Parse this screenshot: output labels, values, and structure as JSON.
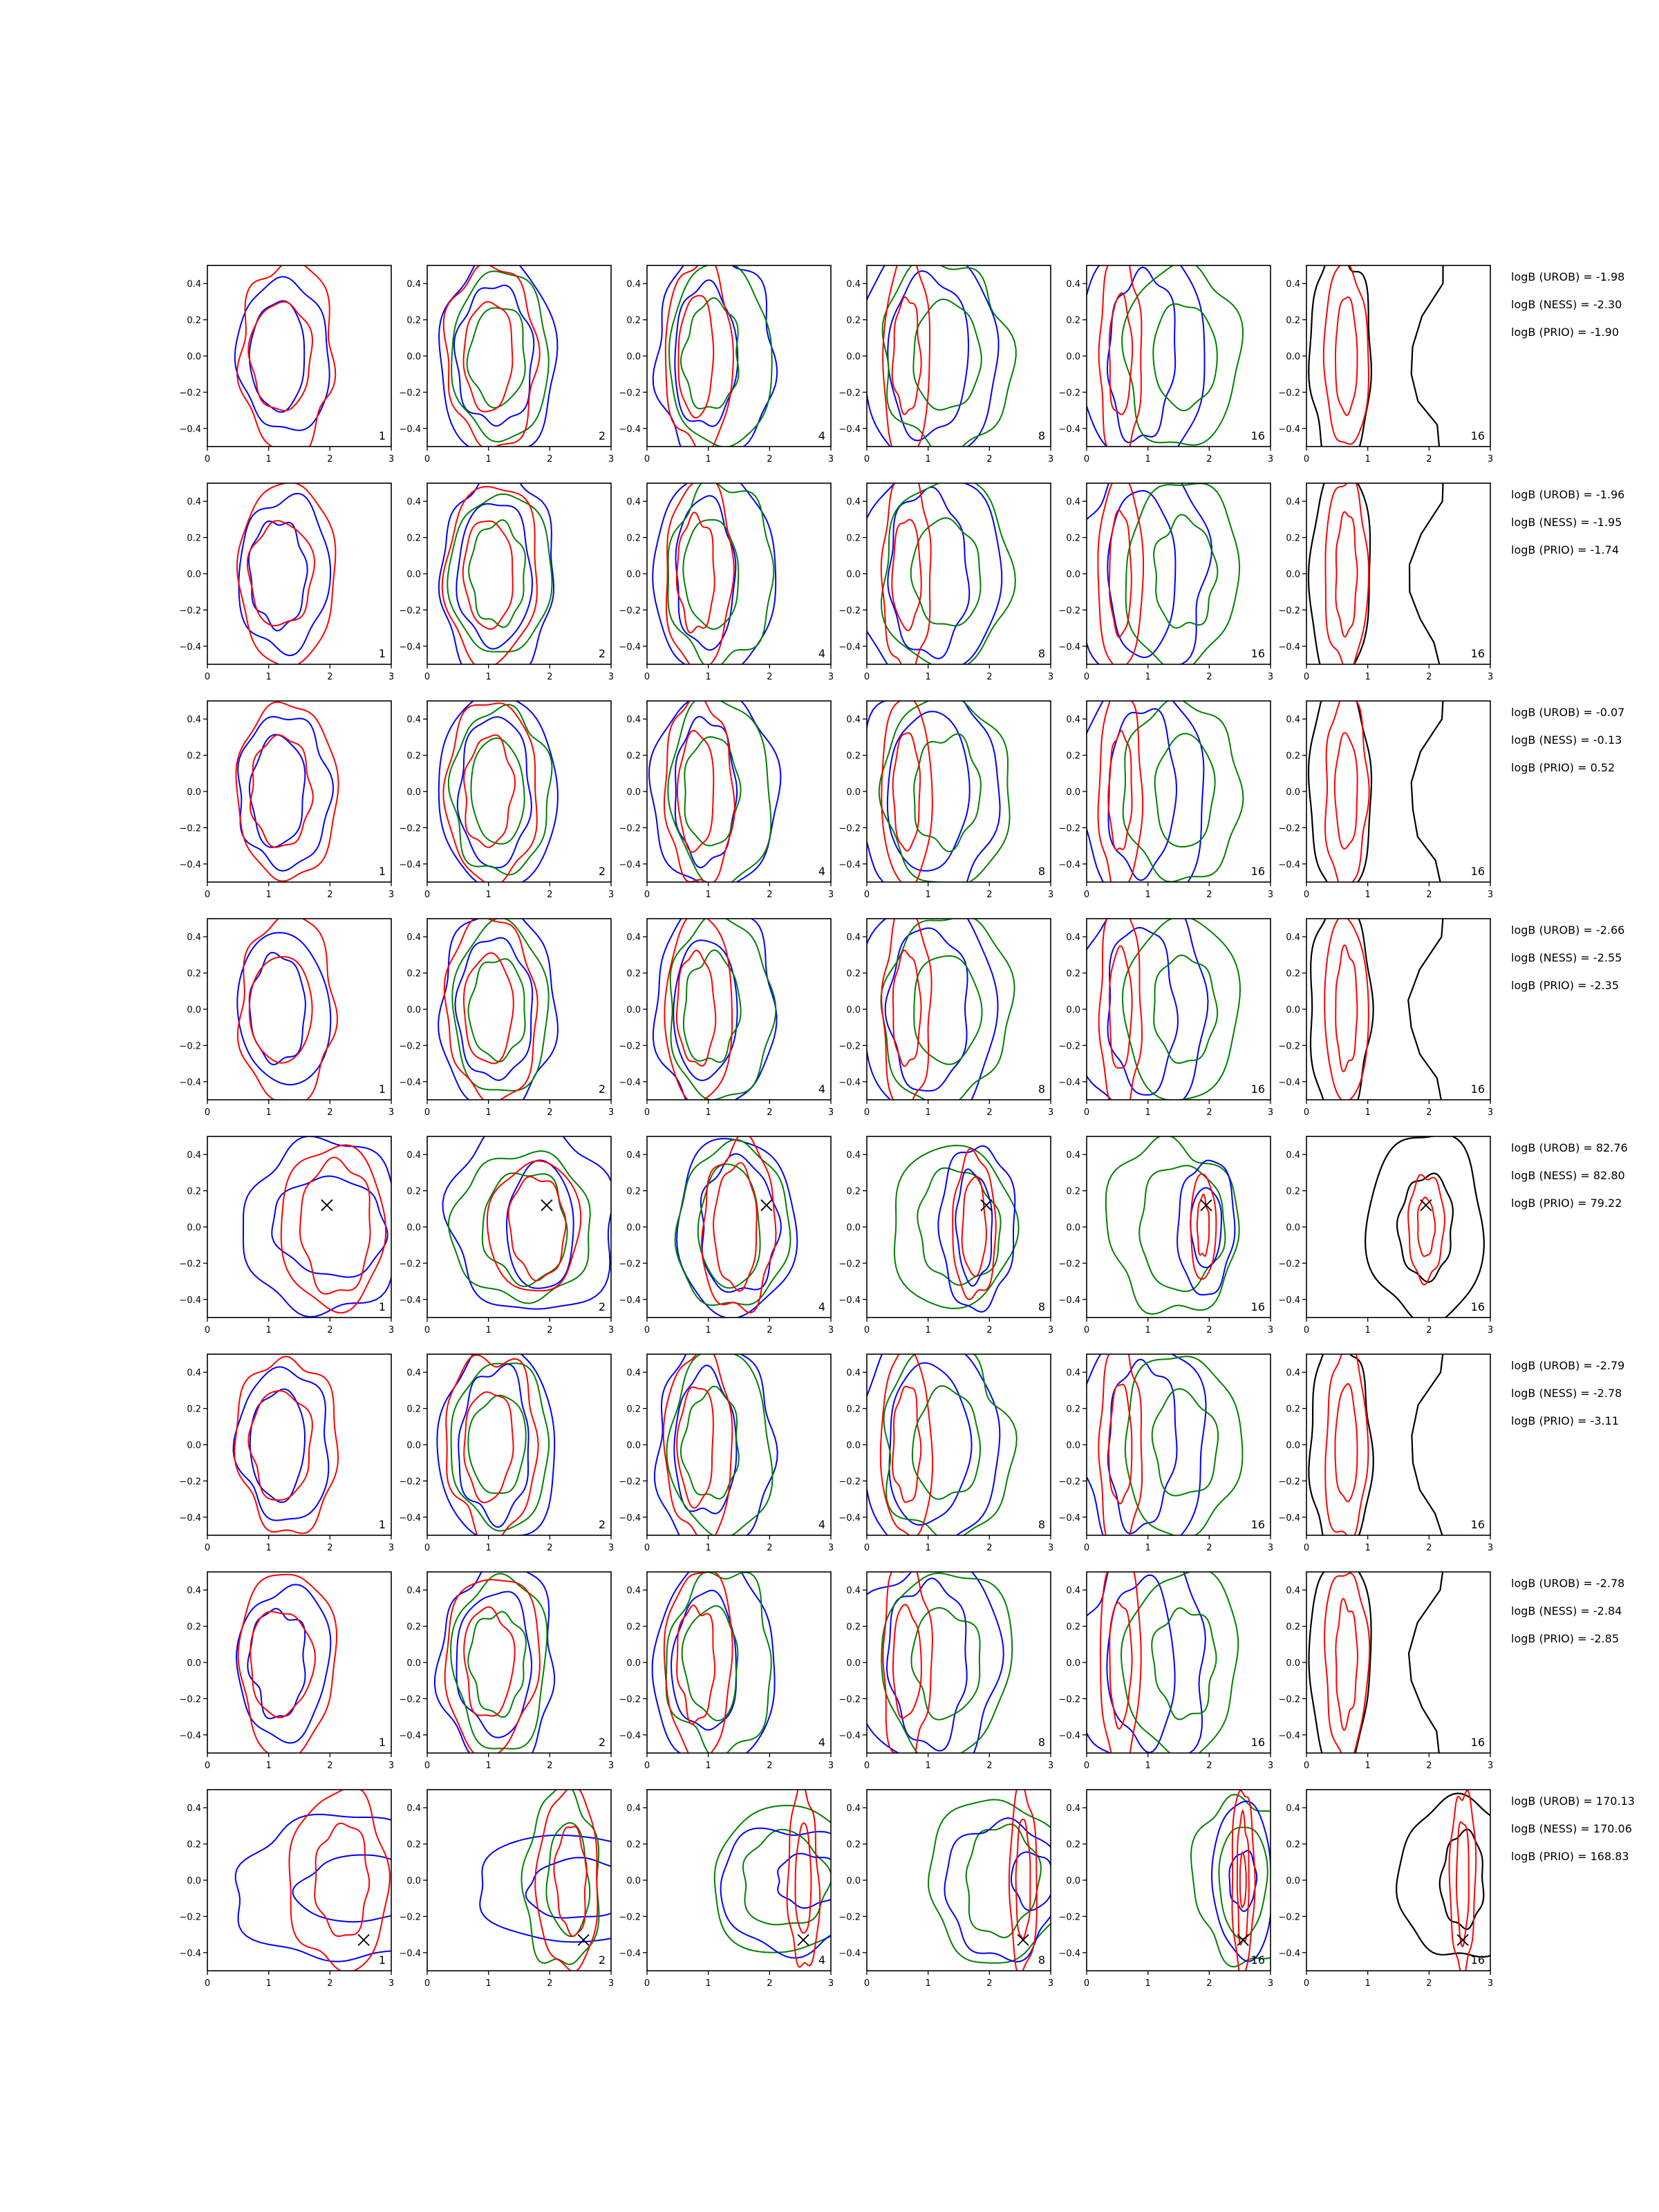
{
  "figure": {
    "colors": {
      "urob": "#0000ff",
      "ness": "#008000",
      "prio": "#ff0000",
      "combined": "#000000",
      "marker": "#000000"
    }
  },
  "chart_data": {
    "type": "contour-grid",
    "rows": 8,
    "columns": 6,
    "panel_labels": [
      "1",
      "2",
      "4",
      "8",
      "16",
      "16"
    ],
    "xlim": [
      0,
      3
    ],
    "ylim": [
      -0.5,
      0.5
    ],
    "x_ticks": [
      "0",
      "1",
      "2",
      "3"
    ],
    "y_ticks": [
      "0.4",
      "0.2",
      "0.0",
      "−0.2",
      "−0.4"
    ],
    "x_tick_values": [
      0,
      1,
      2,
      3
    ],
    "y_tick_values": [
      0.4,
      0.2,
      0.0,
      -0.2,
      -0.4
    ],
    "log_bayes_factors": [
      {
        "urob": "logB (UROB) = -1.98",
        "ness": "logB (NESS) = -2.30",
        "prio": "logB (PRIO) = -1.90"
      },
      {
        "urob": "logB (UROB) = -1.96",
        "ness": "logB (NESS) = -1.95",
        "prio": "logB (PRIO) = -1.74"
      },
      {
        "urob": "logB (UROB) = -0.07",
        "ness": "logB (NESS) = -0.13",
        "prio": "logB (PRIO) = 0.52"
      },
      {
        "urob": "logB (UROB) = -2.66",
        "ness": "logB (NESS) = -2.55",
        "prio": "logB (PRIO) = -2.35"
      },
      {
        "urob": "logB (UROB) = 82.76",
        "ness": "logB (NESS) = 82.80",
        "prio": "logB (PRIO) = 79.22"
      },
      {
        "urob": "logB (UROB) = -2.79",
        "ness": "logB (NESS) = -2.78",
        "prio": "logB (PRIO) = -3.11"
      },
      {
        "urob": "logB (UROB) = -2.78",
        "ness": "logB (NESS) = -2.84",
        "prio": "logB (PRIO) = -2.85"
      },
      {
        "urob": "logB (UROB) = 170.13",
        "ness": "logB (NESS) = 170.06",
        "prio": "logB (PRIO) = 168.83"
      }
    ],
    "injections": [
      null,
      null,
      null,
      null,
      {
        "x": 1.95,
        "y": 0.12
      },
      null,
      null,
      {
        "x": 2.55,
        "y": -0.33
      }
    ],
    "row_kinds": [
      "noise",
      "noise",
      "noise",
      "noise",
      "signal-a",
      "noise",
      "noise",
      "signal-b"
    ]
  }
}
